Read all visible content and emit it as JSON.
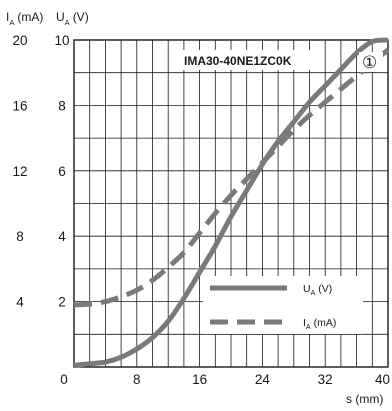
{
  "chart_data": {
    "type": "line",
    "title": "IMA30-40NE1ZC0K",
    "marker": "①",
    "x_axis": {
      "label": "s (mm)",
      "range": [
        0,
        40
      ],
      "ticks": [
        "0",
        "8",
        "16",
        "24",
        "32",
        "40"
      ]
    },
    "y_axis_left": {
      "label_main": "I",
      "label_sub": "A",
      "label_unit": "(mA)",
      "range": [
        0,
        20
      ],
      "ticks": [
        "4",
        "8",
        "12",
        "16",
        "20"
      ]
    },
    "y_axis_right": {
      "label_main": "U",
      "label_sub": "A",
      "label_unit": "(V)",
      "range": [
        0,
        10
      ],
      "ticks": [
        "2",
        "4",
        "6",
        "8",
        "10"
      ]
    },
    "grid": true,
    "legend_position": "lower-right",
    "series": [
      {
        "name_main": "U",
        "name_sub": "A",
        "name_unit": "(V)",
        "style": "solid",
        "axis": "right",
        "color": "#7a7a7a",
        "x": [
          0,
          2,
          4,
          6,
          8,
          10,
          12,
          14,
          16,
          18,
          20,
          22,
          24,
          26,
          28,
          30,
          32,
          34,
          36,
          38,
          40
        ],
        "y": [
          0.05,
          0.1,
          0.15,
          0.3,
          0.55,
          0.9,
          1.4,
          2.1,
          2.9,
          3.7,
          4.6,
          5.4,
          6.2,
          6.9,
          7.5,
          8.1,
          8.6,
          9.1,
          9.6,
          9.95,
          10.0
        ]
      },
      {
        "name_main": "I",
        "name_sub": "A",
        "name_unit": "(mA)",
        "style": "dashed",
        "axis": "left",
        "color": "#7a7a7a",
        "x": [
          0,
          2,
          4,
          6,
          8,
          10,
          12,
          14,
          16,
          18,
          20,
          22,
          24,
          26,
          28,
          30,
          32,
          34,
          36,
          38,
          40
        ],
        "y": [
          3.8,
          3.85,
          4.0,
          4.3,
          4.7,
          5.3,
          6.1,
          7.0,
          8.2,
          9.4,
          10.5,
          11.5,
          12.5,
          13.5,
          14.5,
          15.4,
          16.2,
          17.0,
          17.8,
          18.6,
          19.4
        ]
      }
    ]
  }
}
